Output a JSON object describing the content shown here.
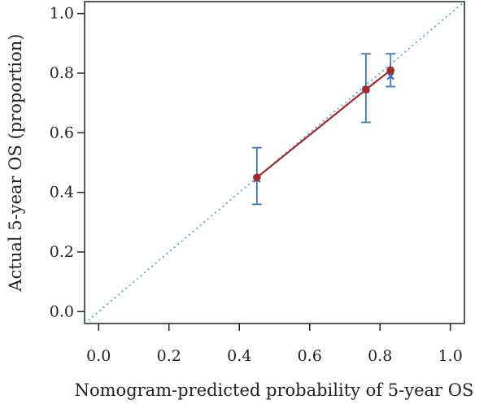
{
  "chart_data": {
    "type": "scatter",
    "title": "",
    "xlabel": "Nomogram-predicted probability of 5-year OS",
    "ylabel": "Actual 5-year OS (proportion)",
    "xlim": [
      -0.04,
      1.04
    ],
    "ylim": [
      -0.04,
      1.04
    ],
    "xticks": [
      0.0,
      0.2,
      0.4,
      0.6,
      0.8,
      1.0
    ],
    "yticks": [
      0.0,
      0.2,
      0.4,
      0.6,
      0.8,
      1.0
    ],
    "tick_labels": [
      "0.0",
      "0.2",
      "0.4",
      "0.6",
      "0.8",
      "1.0"
    ],
    "grid": false,
    "legend": "none",
    "reference_line": {
      "style": "dotted",
      "color": "#3ca0c8",
      "from": [
        -0.04,
        -0.04
      ],
      "to": [
        1.04,
        1.04
      ]
    },
    "calibration_line": {
      "color": "#a52a2a",
      "x": [
        0.45,
        0.76,
        0.83
      ],
      "y": [
        0.45,
        0.745,
        0.81
      ]
    },
    "error_bars": {
      "color": "#3a78c0",
      "x": [
        0.45,
        0.76,
        0.83
      ],
      "low": [
        0.36,
        0.635,
        0.755
      ],
      "high": [
        0.55,
        0.865,
        0.865
      ]
    },
    "bias_corrected": {
      "marker": "x",
      "color": "#3a62b8",
      "x": [
        0.45,
        0.76,
        0.83
      ],
      "y": [
        0.445,
        0.745,
        0.79
      ]
    }
  }
}
